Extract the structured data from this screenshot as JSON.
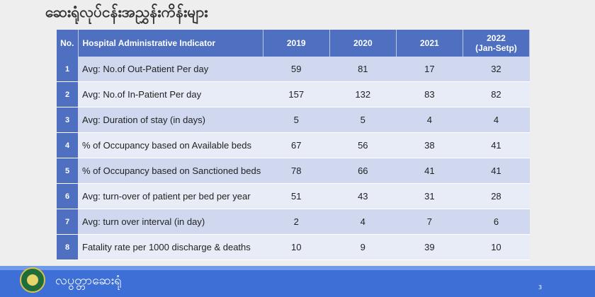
{
  "slide": {
    "title": "ဆေးရုံလုပ်ငန်းအညွှန်းကိန်းများ",
    "footer_text": "လပွတ္တာဆေးရုံ",
    "page_number": "3"
  },
  "table": {
    "headers": {
      "no": "No.",
      "indicator": "Hospital Administrative Indicator",
      "y2019": "2019",
      "y2020": "2020",
      "y2021": "2021",
      "y2022": "2022",
      "y2022_sub": "(Jan-Setp)"
    },
    "rows": [
      {
        "no": "1",
        "indicator": "Avg: No.of Out-Patient Per day",
        "y2019": "59",
        "y2020": "81",
        "y2021": "17",
        "y2022": "32"
      },
      {
        "no": "2",
        "indicator": "Avg: No.of In-Patient Per day",
        "y2019": "157",
        "y2020": "132",
        "y2021": "83",
        "y2022": "82"
      },
      {
        "no": "3",
        "indicator": "Avg: Duration of stay (in days)",
        "y2019": "5",
        "y2020": "5",
        "y2021": "4",
        "y2022": "4"
      },
      {
        "no": "4",
        "indicator": "% of Occupancy based on Available beds",
        "y2019": "67",
        "y2020": "56",
        "y2021": "38",
        "y2022": "41"
      },
      {
        "no": "5",
        "indicator": "% of Occupancy based on Sanctioned beds",
        "y2019": "78",
        "y2020": "66",
        "y2021": "41",
        "y2022": "41"
      },
      {
        "no": "6",
        "indicator": "Avg: turn-over of patient per bed per year",
        "y2019": "51",
        "y2020": "43",
        "y2021": "31",
        "y2022": "28"
      },
      {
        "no": "7",
        "indicator": "Avg: turn over interval (in day)",
        "y2019": "2",
        "y2020": "4",
        "y2021": "7",
        "y2022": "6"
      },
      {
        "no": "8",
        "indicator": "Fatality rate per 1000 discharge & deaths",
        "y2019": "10",
        "y2020": "9",
        "y2021": "39",
        "y2022": "10"
      }
    ]
  },
  "colors": {
    "header_bg": "#4f70c0",
    "row_odd": "#cfd8ee",
    "row_even": "#e8ecf6",
    "footer_bg": "#3d6fd6"
  }
}
